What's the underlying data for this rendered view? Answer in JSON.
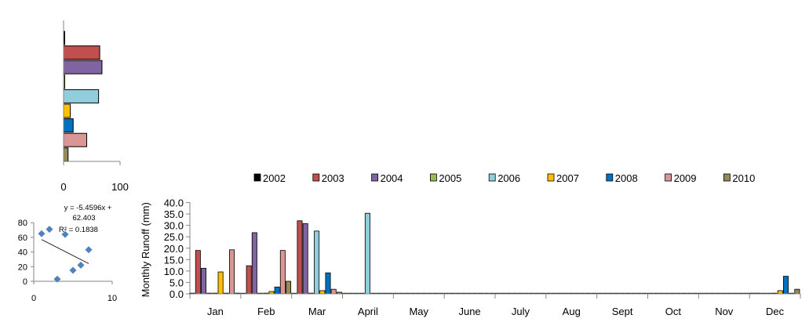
{
  "chart_data": [
    {
      "type": "bar",
      "orientation": "horizontal",
      "categories": [
        "2002",
        "2003",
        "2004",
        "2005",
        "2006",
        "2007",
        "2008",
        "2009",
        "2010"
      ],
      "values": [
        0,
        64,
        68,
        1,
        62,
        12,
        17,
        41,
        8
      ],
      "colors": [
        "#000000",
        "#C0504D",
        "#8064A2",
        "#9BBB59",
        "#92CDDC",
        "#FFC000",
        "#0070C0",
        "#D99694",
        "#948A54"
      ],
      "xlim": [
        0,
        100
      ],
      "xticks": [
        "0",
        "100"
      ]
    },
    {
      "type": "scatter",
      "points": [
        {
          "x": 1,
          "y": 65
        },
        {
          "x": 2,
          "y": 71
        },
        {
          "x": 3,
          "y": 3
        },
        {
          "x": 4,
          "y": 64
        },
        {
          "x": 5,
          "y": 15
        },
        {
          "x": 6,
          "y": 22
        },
        {
          "x": 7,
          "y": 43
        }
      ],
      "trendline": {
        "slope": -5.4596,
        "intercept": 62.403,
        "x_range": [
          1,
          7
        ]
      },
      "annotation": [
        "y = -5.4596x +",
        "62.403",
        "R² = 0.1838"
      ],
      "xlim": [
        0,
        10
      ],
      "ylim": [
        0,
        80
      ],
      "xticks": [
        "0",
        "10"
      ],
      "yticks": [
        "0",
        "20",
        "40",
        "60",
        "80"
      ],
      "marker_color": "#4F81BD"
    },
    {
      "type": "bar",
      "categories": [
        "Jan",
        "Feb",
        "Mar",
        "April",
        "May",
        "June",
        "July",
        "Aug",
        "Sept",
        "Oct",
        "Nov",
        "Dec"
      ],
      "series": [
        {
          "name": "2002",
          "color": "#000000",
          "values": [
            0.3,
            0.2,
            0.2,
            0.2,
            0.2,
            0.2,
            0.2,
            0.2,
            0.2,
            0.2,
            0.2,
            0.3
          ]
        },
        {
          "name": "2003",
          "color": "#C0504D",
          "values": [
            19.0,
            12.3,
            32.0,
            0.2,
            0.2,
            0.2,
            0.2,
            0.2,
            0.2,
            0.2,
            0.2,
            0.3
          ]
        },
        {
          "name": "2004",
          "color": "#8064A2",
          "values": [
            11.2,
            26.8,
            30.8,
            0.2,
            0.2,
            0.2,
            0.2,
            0.2,
            0.2,
            0.2,
            0.2,
            0.2
          ]
        },
        {
          "name": "2005",
          "color": "#9BBB59",
          "values": [
            0.3,
            0.2,
            0.3,
            0.2,
            0.2,
            0.2,
            0.2,
            0.2,
            0.2,
            0.2,
            0.2,
            0.2
          ]
        },
        {
          "name": "2006",
          "color": "#92CDDC",
          "values": [
            0.3,
            0.3,
            27.5,
            35.3,
            0.2,
            0.2,
            0.2,
            0.2,
            0.2,
            0.2,
            0.2,
            0.3
          ]
        },
        {
          "name": "2007",
          "color": "#FFC000",
          "values": [
            9.6,
            1.0,
            1.4,
            0.2,
            0.2,
            0.2,
            0.2,
            0.2,
            0.2,
            0.2,
            0.2,
            1.4
          ]
        },
        {
          "name": "2008",
          "color": "#0070C0",
          "values": [
            0.3,
            3.0,
            9.2,
            0.2,
            0.2,
            0.2,
            0.2,
            0.2,
            0.2,
            0.2,
            0.2,
            7.7
          ]
        },
        {
          "name": "2009",
          "color": "#D99694",
          "values": [
            19.3,
            19.0,
            2.0,
            0.2,
            0.2,
            0.2,
            0.2,
            0.2,
            0.2,
            0.2,
            0.2,
            0.2
          ]
        },
        {
          "name": "2010",
          "color": "#948A54",
          "values": [
            0.3,
            5.5,
            0.7,
            0.2,
            0.2,
            0.2,
            0.2,
            0.2,
            0.2,
            0.2,
            0.2,
            2.0
          ]
        }
      ],
      "ylabel": "Monthly  Runoff (mm)",
      "ylim": [
        0,
        40
      ],
      "yticks": [
        "0.0",
        "5.0",
        "10.0",
        "15.0",
        "20.0",
        "25.0",
        "30.0",
        "35.0",
        "40.0"
      ],
      "legend_position": "top",
      "grid": false
    }
  ]
}
